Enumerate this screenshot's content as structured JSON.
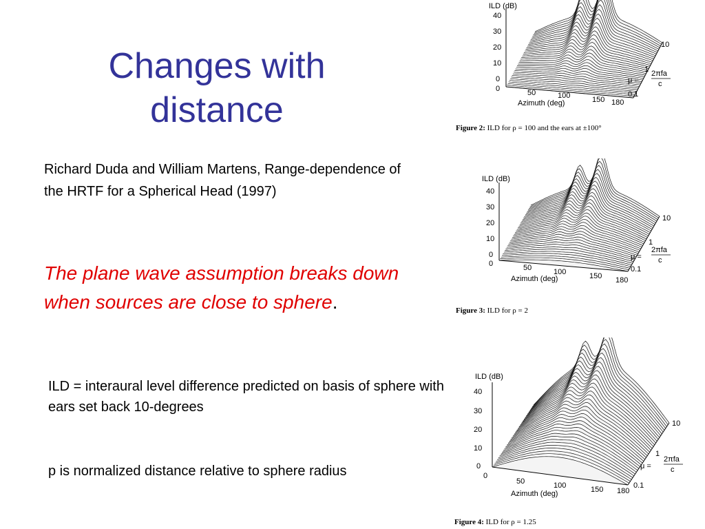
{
  "slide": {
    "title": "Changes with distance",
    "citation": "Richard Duda and William Martens, Range-dependence of the HRTF for a Spherical Head (1997)",
    "emphasis": "The plane wave assumption breaks down when sources are close to sphere",
    "emphasis_end": ".",
    "ild_note": "ILD = interaural level difference predicted on basis of sphere with ears set back 10-degrees",
    "rho_note": "p is normalized distance relative to sphere radius"
  },
  "figures": [
    {
      "caption_label": "Figure 2:",
      "caption_text": "ILD for ρ = 100 and the ears at ±100°",
      "z_label": "ILD (dB)",
      "z_ticks": [
        "40",
        "30",
        "20",
        "10",
        "0"
      ],
      "x_ticks": [
        "0",
        "50",
        "100",
        "150",
        "180"
      ],
      "x_label": "Azimuth  (deg)",
      "mu_ticks": [
        "10",
        "1",
        "0.1"
      ],
      "mu_symbol": "μ =",
      "mu_num": "2πfa",
      "mu_den": "c"
    },
    {
      "caption_label": "Figure 3:",
      "caption_text": "ILD for ρ = 2",
      "z_label": "ILD (dB)",
      "z_ticks": [
        "40",
        "30",
        "20",
        "10",
        "0"
      ],
      "x_ticks": [
        "0",
        "50",
        "100",
        "150",
        "180"
      ],
      "x_label": "Azimuth  (deg)",
      "mu_ticks": [
        "10",
        "1",
        "0.1"
      ],
      "mu_symbol": "μ =",
      "mu_num": "2πfa",
      "mu_den": "c"
    },
    {
      "caption_label": "Figure 4:",
      "caption_text": "ILD for ρ = 1.25",
      "z_label": "ILD (dB)",
      "z_ticks": [
        "40",
        "30",
        "20",
        "10",
        "0"
      ],
      "x_ticks": [
        "0",
        "50",
        "100",
        "150",
        "180"
      ],
      "x_label": "Azimuth  (deg)",
      "mu_ticks": [
        "10",
        "1",
        "0.1"
      ],
      "mu_symbol": "μ =",
      "mu_num": "2πfa",
      "mu_den": "c"
    }
  ]
}
